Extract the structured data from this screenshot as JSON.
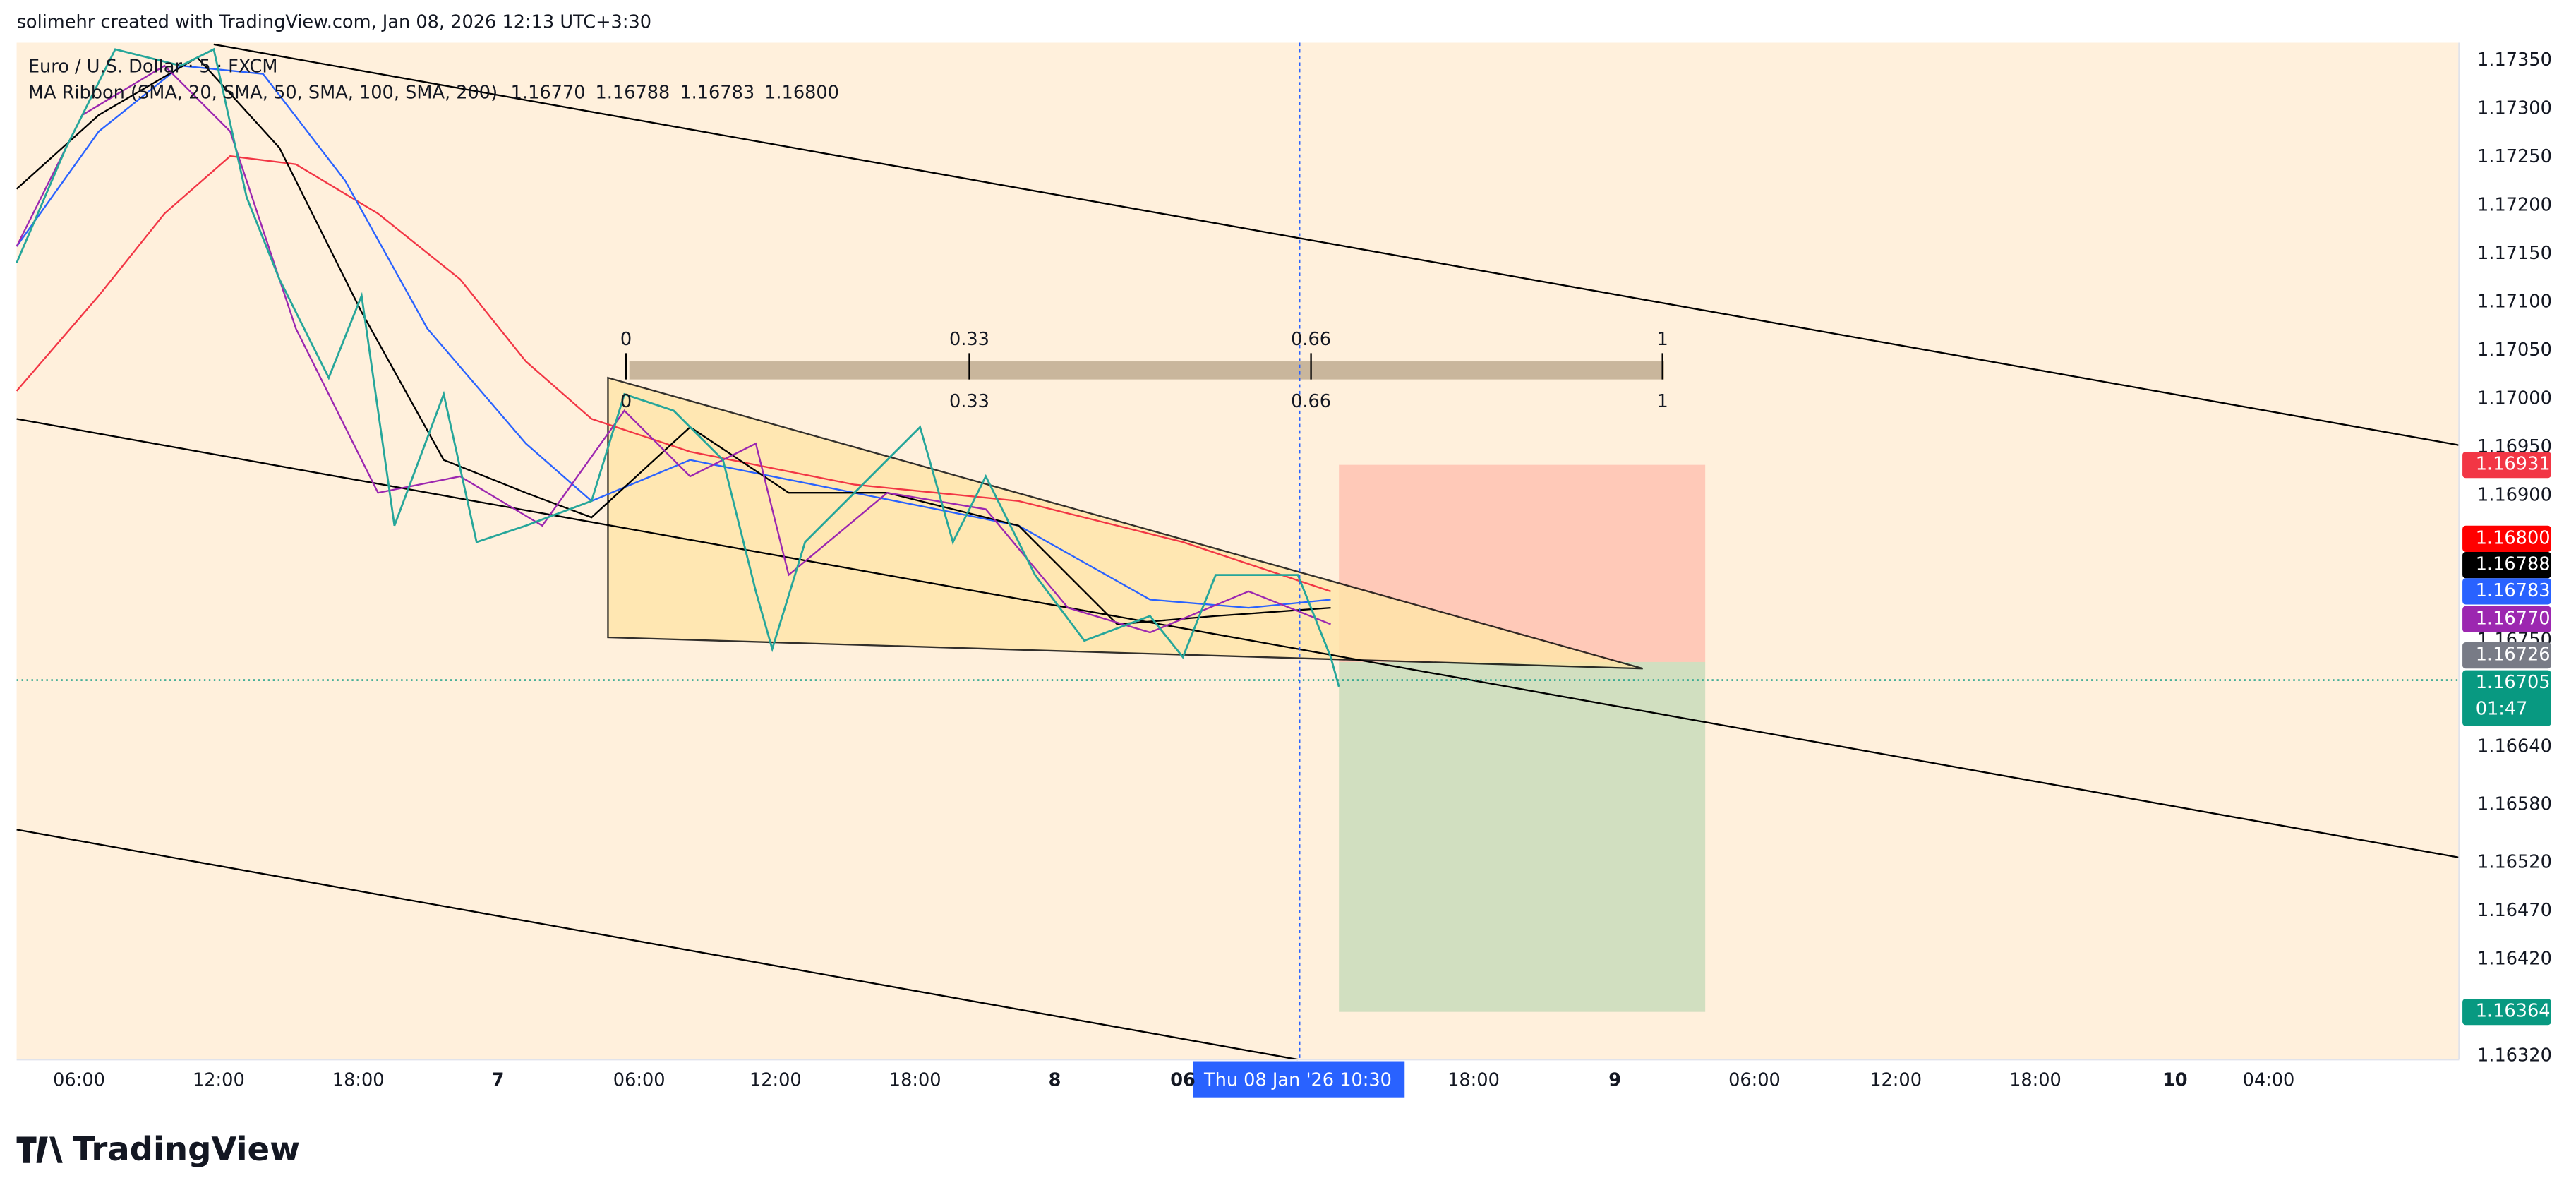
{
  "header": {
    "text": "solimehr created with TradingView.com, Jan 08, 2026 12:13 UTC+3:30"
  },
  "legend": {
    "symbol": "Euro / U.S. Dollar · 5 · FXCM",
    "indicator": "MA Ribbon (SMA, 20, SMA, 50, SMA, 100, SMA, 200)",
    "values": [
      {
        "text": "1.16770",
        "color": "#9c27b0"
      },
      {
        "text": "1.16788",
        "color": "#000000"
      },
      {
        "text": "1.16783",
        "color": "#2962ff"
      },
      {
        "text": "1.16800",
        "color": "#f23645"
      }
    ]
  },
  "price_axis": [
    "1.17350",
    "1.17300",
    "1.17250",
    "1.17200",
    "1.17150",
    "1.17100",
    "1.17050",
    "1.17000",
    "1.16950",
    "1.16900",
    "1.16750",
    "1.16640",
    "1.16580",
    "1.16520",
    "1.16470",
    "1.16420",
    "1.16320"
  ],
  "price_badges": [
    {
      "text": "1.16931",
      "color": "#f23645"
    },
    {
      "text": "1.16800",
      "color": "#ff0000"
    },
    {
      "text": "1.16788",
      "color": "#000000"
    },
    {
      "text": "1.16783",
      "color": "#2962ff"
    },
    {
      "text": "1.16770",
      "color": "#9c27b0"
    },
    {
      "text": "1.16726",
      "color": "#787b86"
    },
    {
      "text": "1.16705",
      "color": "#089981",
      "sub": "01:47"
    },
    {
      "text": "1.16364",
      "color": "#089981"
    }
  ],
  "time_axis": [
    "06:00",
    "12:00",
    "18:00",
    "7",
    "06:00",
    "12:00",
    "18:00",
    "8",
    "06",
    "18:00",
    "9",
    "06:00",
    "12:00",
    "18:00",
    "10",
    "04:00"
  ],
  "crosshair_label": "Thu 08 Jan '26   10:30",
  "fib_top": [
    "0",
    "0.33",
    "0.66",
    "1"
  ],
  "fib_bottom": [
    "0",
    "0.33",
    "0.66",
    "1"
  ],
  "logo": "TradingView"
}
